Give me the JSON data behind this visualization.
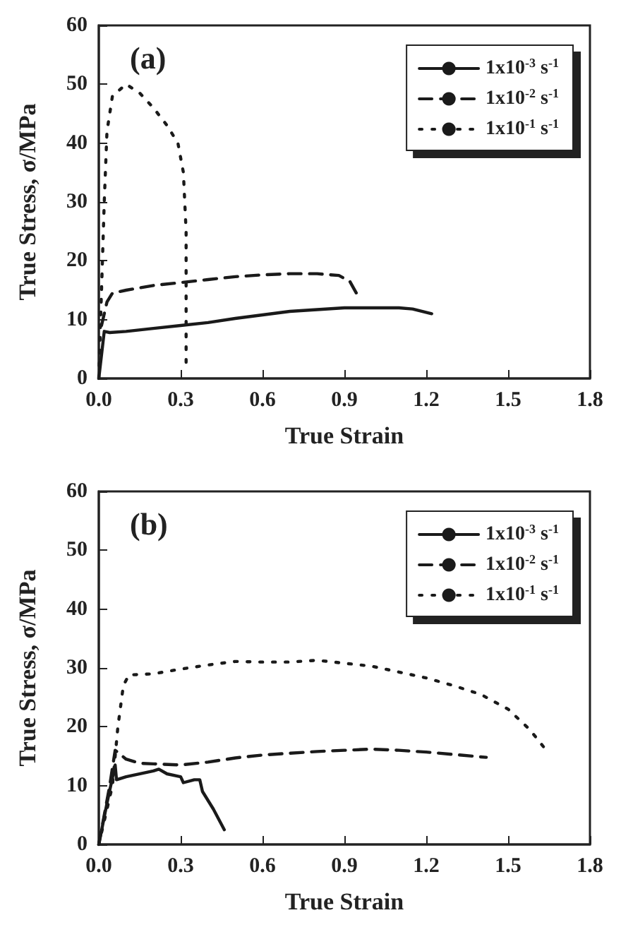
{
  "chart_data": [
    {
      "type": "line",
      "xlabel": "True Strain",
      "ylabel": "True Stress, σ/MPa",
      "annotations": [
        "(a)"
      ],
      "xlim": [
        0,
        1.8
      ],
      "ylim": [
        0,
        60
      ],
      "xticks": [
        {
          "value": 0,
          "label": "0.0"
        },
        0.3,
        0.6,
        0.9,
        1.2,
        1.5,
        1.8
      ],
      "yticks": [
        0,
        10,
        20,
        30,
        40,
        50,
        60
      ],
      "grid": false,
      "legend": "top right",
      "marker": "none",
      "series": [
        {
          "name": "1x10$^{-3}$ s$^{-1}$",
          "color": "#1a1a1a",
          "line_style": "solid",
          "x": [
            0,
            0.02,
            0.04,
            0.1,
            0.2,
            0.3,
            0.4,
            0.5,
            0.6,
            0.7,
            0.8,
            0.9,
            1.0,
            1.1,
            1.15,
            1.22
          ],
          "values": [
            0,
            8,
            7.8,
            8,
            8.5,
            9,
            9.5,
            10.2,
            10.8,
            11.4,
            11.7,
            12,
            12,
            12,
            11.8,
            11
          ]
        },
        {
          "name": "1x10$^{-2}$ s$^{-1}$",
          "color": "#1a1a1a",
          "line_style": "dashed",
          "x": [
            0.01,
            0.03,
            0.05,
            0.1,
            0.2,
            0.3,
            0.4,
            0.5,
            0.6,
            0.7,
            0.8,
            0.88,
            0.92,
            0.95
          ],
          "values": [
            9,
            13,
            14.5,
            15,
            15.8,
            16.3,
            16.8,
            17.3,
            17.6,
            17.8,
            17.8,
            17.5,
            16.5,
            14
          ]
        },
        {
          "name": "1x10$^{-1}$ s$^{-1}$",
          "color": "#1a1a1a",
          "line_style": "dotted",
          "x": [
            0,
            0.01,
            0.02,
            0.03,
            0.05,
            0.1,
            0.15,
            0.2,
            0.25,
            0.29,
            0.31,
            0.32,
            0.32,
            0.32
          ],
          "values": [
            0,
            15,
            30,
            42,
            48,
            50,
            48.5,
            46,
            43,
            40,
            35,
            25,
            10,
            2
          ]
        }
      ]
    },
    {
      "type": "line",
      "xlabel": "True Strain",
      "ylabel": "True Stress, σ/MPa",
      "annotations": [
        "(b)"
      ],
      "xlim": [
        0,
        1.8
      ],
      "ylim": [
        0,
        60
      ],
      "xticks": [
        {
          "value": 0,
          "label": "0.0"
        },
        0.3,
        0.6,
        0.9,
        1.2,
        1.5,
        1.8
      ],
      "yticks": [
        0,
        10,
        20,
        30,
        40,
        50,
        60
      ],
      "grid": false,
      "legend": "top right",
      "marker": "none",
      "series": [
        {
          "name": "1x10$^{-3}$ s$^{-1}$",
          "color": "#1a1a1a",
          "line_style": "solid",
          "x": [
            0,
            0.03,
            0.06,
            0.065,
            0.1,
            0.2,
            0.22,
            0.25,
            0.3,
            0.31,
            0.35,
            0.37,
            0.38,
            0.42,
            0.46
          ],
          "values": [
            0,
            7,
            13.5,
            11,
            11.5,
            12.5,
            12.8,
            12,
            11.5,
            10.5,
            11,
            11,
            9,
            6,
            2.5
          ]
        },
        {
          "name": "1x10$^{-2}$ s$^{-1}$",
          "color": "#1a1a1a",
          "line_style": "dashed",
          "x": [
            0,
            0.04,
            0.06,
            0.1,
            0.15,
            0.2,
            0.3,
            0.4,
            0.5,
            0.6,
            0.7,
            0.8,
            0.9,
            1.0,
            1.1,
            1.2,
            1.3,
            1.42
          ],
          "values": [
            0,
            10,
            16,
            14.5,
            13.8,
            13.7,
            13.5,
            14,
            14.7,
            15.2,
            15.5,
            15.8,
            16,
            16.2,
            16,
            15.7,
            15.3,
            14.8
          ]
        },
        {
          "name": "1x10$^{-1}$ s$^{-1}$",
          "color": "#1a1a1a",
          "line_style": "dotted",
          "x": [
            0,
            0.05,
            0.07,
            0.09,
            0.11,
            0.2,
            0.3,
            0.4,
            0.5,
            0.6,
            0.7,
            0.8,
            0.9,
            1.0,
            1.1,
            1.2,
            1.3,
            1.4,
            1.5,
            1.58,
            1.64
          ],
          "values": [
            0,
            10,
            20,
            27,
            28.8,
            29,
            29.8,
            30.5,
            31.1,
            31,
            31,
            31.3,
            30.8,
            30.3,
            29.3,
            28.3,
            27,
            25.5,
            23,
            19.5,
            16
          ]
        }
      ]
    }
  ]
}
